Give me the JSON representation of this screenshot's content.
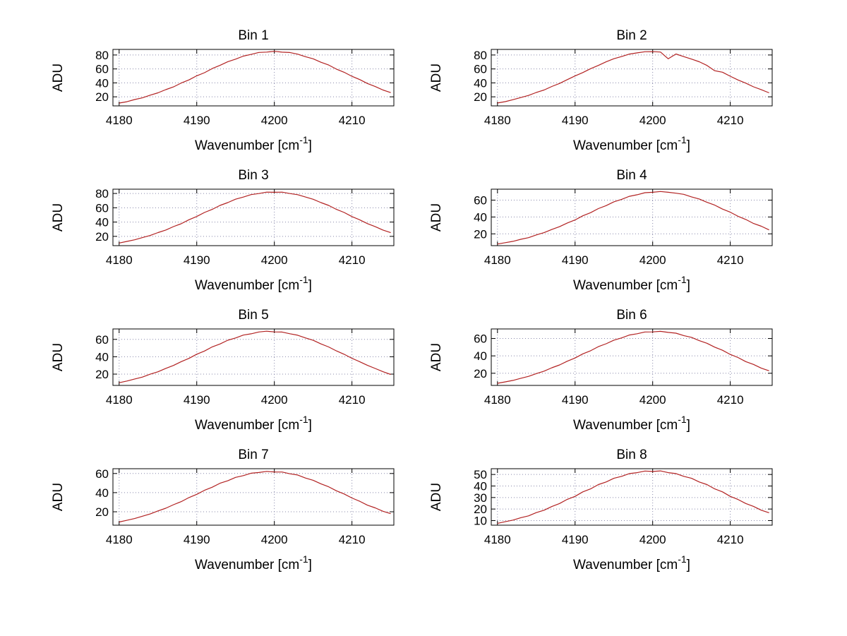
{
  "figure": {
    "background": "#ffffff",
    "line_color": "#b22222",
    "grid_color": "#8888aa",
    "axis_color": "#000000",
    "xlabel_parts": {
      "main": "Wavenumber [cm",
      "sup": "-1",
      "close": "]"
    }
  },
  "chart_data": [
    {
      "type": "line",
      "title": "Bin 1",
      "xlabel": "Wavenumber [cm⁻¹]",
      "ylabel": "ADU",
      "xlim": [
        4179.2,
        4215.4
      ],
      "ylim": [
        7,
        88
      ],
      "xticks": [
        4180,
        4190,
        4200,
        4210
      ],
      "yticks": [
        20,
        40,
        60,
        80
      ],
      "grid": true,
      "x_start": 4180,
      "x_step": 1,
      "values": [
        11.0,
        13.0,
        16.1,
        18.5,
        22.4,
        25.7,
        30.3,
        34.2,
        39.8,
        44.3,
        50.1,
        54.6,
        60.6,
        65.1,
        70.4,
        74.0,
        78.4,
        80.8,
        83.6,
        84.2,
        85.3,
        84.1,
        83.5,
        81.2,
        77.6,
        74.5,
        69.6,
        65.6,
        59.8,
        55.2,
        49.4,
        44.8,
        39.1,
        34.7,
        29.8,
        26.0
      ]
    },
    {
      "type": "line",
      "title": "Bin 2",
      "xlabel": "Wavenumber [cm⁻¹]",
      "ylabel": "ADU",
      "xlim": [
        4179.2,
        4215.4
      ],
      "ylim": [
        7,
        88
      ],
      "xticks": [
        4180,
        4190,
        4200,
        4210
      ],
      "yticks": [
        20,
        40,
        60,
        80
      ],
      "grid": true,
      "x_start": 4180,
      "x_step": 1,
      "values": [
        11.2,
        13.1,
        15.9,
        18.9,
        22.0,
        26.2,
        29.8,
        34.8,
        39.2,
        44.7,
        49.9,
        54.8,
        60.4,
        65.0,
        70.2,
        74.6,
        77.8,
        81.3,
        83.0,
        84.7,
        84.8,
        84.3,
        74.5,
        81.4,
        77.7,
        74.1,
        70.3,
        65.0,
        57.4,
        55.3,
        49.5,
        44.2,
        39.6,
        34.3,
        30.2,
        25.7
      ]
    },
    {
      "type": "line",
      "title": "Bin 3",
      "xlabel": "Wavenumber [cm⁻¹]",
      "ylabel": "ADU",
      "xlim": [
        4179.2,
        4215.4
      ],
      "ylim": [
        7,
        86
      ],
      "xticks": [
        4180,
        4190,
        4200,
        4210
      ],
      "yticks": [
        20,
        40,
        60,
        80
      ],
      "grid": true,
      "x_start": 4180,
      "x_step": 1,
      "values": [
        10.7,
        12.9,
        15.2,
        18.3,
        21.2,
        25.3,
        28.8,
        33.7,
        37.7,
        43.2,
        47.8,
        53.4,
        57.8,
        63.3,
        67.2,
        72.0,
        74.9,
        78.4,
        79.9,
        81.9,
        81.7,
        81.9,
        79.9,
        78.3,
        75.0,
        71.9,
        67.2,
        63.3,
        57.8,
        53.4,
        47.7,
        43.1,
        37.8,
        33.6,
        28.8,
        25.2
      ]
    },
    {
      "type": "line",
      "title": "Bin 4",
      "xlabel": "Wavenumber [cm⁻¹]",
      "ylabel": "ADU",
      "xlim": [
        4179.2,
        4215.4
      ],
      "ylim": [
        6,
        73
      ],
      "xticks": [
        4180,
        4190,
        4200,
        4210
      ],
      "yticks": [
        20,
        40,
        60
      ],
      "grid": true,
      "x_start": 4180,
      "x_step": 1,
      "values": [
        7.9,
        9.5,
        11.1,
        13.5,
        15.5,
        18.7,
        21.4,
        25.2,
        28.5,
        32.9,
        36.5,
        41.4,
        45.1,
        50.0,
        53.5,
        58.0,
        60.9,
        64.5,
        66.4,
        68.8,
        69.3,
        70.2,
        69.3,
        68.2,
        66.9,
        63.9,
        61.4,
        57.4,
        54.1,
        49.4,
        45.7,
        40.8,
        37.1,
        32.3,
        29.0,
        24.7
      ]
    },
    {
      "type": "line",
      "title": "Bin 5",
      "xlabel": "Wavenumber [cm⁻¹]",
      "ylabel": "ADU",
      "xlim": [
        4179.2,
        4215.4
      ],
      "ylim": [
        7,
        72
      ],
      "xticks": [
        4180,
        4190,
        4200,
        4210
      ],
      "yticks": [
        20,
        40,
        60
      ],
      "grid": true,
      "x_start": 4180,
      "x_step": 1,
      "values": [
        10.1,
        12.0,
        14.4,
        16.6,
        19.9,
        22.7,
        26.6,
        30.0,
        34.4,
        38.1,
        42.9,
        46.6,
        51.4,
        54.7,
        59.0,
        61.6,
        64.9,
        66.4,
        68.5,
        69.4,
        68.6,
        68.4,
        66.5,
        64.8,
        61.7,
        58.9,
        54.8,
        51.3,
        46.7,
        42.8,
        38.2,
        34.3,
        30.1,
        26.5,
        22.8,
        19.6
      ]
    },
    {
      "type": "line",
      "title": "Bin 6",
      "xlabel": "Wavenumber [cm⁻¹]",
      "ylabel": "ADU",
      "xlim": [
        4179.2,
        4215.4
      ],
      "ylim": [
        6,
        71
      ],
      "xticks": [
        4180,
        4190,
        4200,
        4210
      ],
      "yticks": [
        20,
        40,
        60
      ],
      "grid": true,
      "x_start": 4180,
      "x_step": 1,
      "values": [
        8.4,
        10.1,
        11.8,
        14.2,
        16.4,
        19.6,
        22.4,
        26.3,
        29.6,
        33.9,
        37.5,
        42.3,
        45.9,
        50.6,
        53.9,
        58.1,
        60.7,
        64.0,
        65.5,
        67.5,
        67.6,
        68.2,
        67.0,
        66.1,
        63.4,
        61.3,
        57.5,
        54.5,
        50.0,
        46.5,
        41.7,
        38.1,
        33.4,
        30.1,
        25.8,
        22.8
      ]
    },
    {
      "type": "line",
      "title": "Bin 7",
      "xlabel": "Wavenumber [cm⁻¹]",
      "ylabel": "ADU",
      "xlim": [
        4179.2,
        4215.4
      ],
      "ylim": [
        6,
        65
      ],
      "xticks": [
        4180,
        4190,
        4200,
        4210
      ],
      "yticks": [
        20,
        40,
        60
      ],
      "grid": true,
      "x_start": 4180,
      "x_step": 1,
      "values": [
        9.3,
        11.1,
        12.9,
        15.4,
        17.7,
        20.9,
        23.7,
        27.4,
        30.6,
        34.8,
        38.2,
        42.4,
        45.7,
        49.8,
        52.4,
        55.9,
        57.8,
        60.3,
        61.0,
        62.2,
        61.6,
        61.5,
        59.7,
        58.4,
        55.3,
        52.9,
        49.2,
        46.1,
        41.9,
        38.6,
        34.4,
        31.0,
        26.9,
        24.1,
        20.5,
        18.0
      ]
    },
    {
      "type": "line",
      "title": "Bin 8",
      "xlabel": "Wavenumber [cm⁻¹]",
      "ylabel": "ADU",
      "xlim": [
        4179.2,
        4215.4
      ],
      "ylim": [
        6,
        55
      ],
      "xticks": [
        4180,
        4190,
        4200,
        4210
      ],
      "yticks": [
        10,
        20,
        30,
        40,
        50
      ],
      "grid": true,
      "x_start": 4180,
      "x_step": 1,
      "values": [
        7.6,
        9.0,
        10.4,
        12.5,
        14.1,
        16.9,
        19.0,
        22.2,
        24.8,
        28.4,
        31.0,
        34.9,
        37.5,
        41.2,
        43.5,
        46.7,
        48.4,
        50.8,
        51.6,
        53.0,
        52.6,
        53.1,
        51.6,
        50.8,
        48.4,
        46.7,
        43.5,
        41.2,
        37.5,
        34.9,
        31.0,
        28.3,
        24.8,
        22.3,
        19.0,
        16.8
      ]
    }
  ]
}
